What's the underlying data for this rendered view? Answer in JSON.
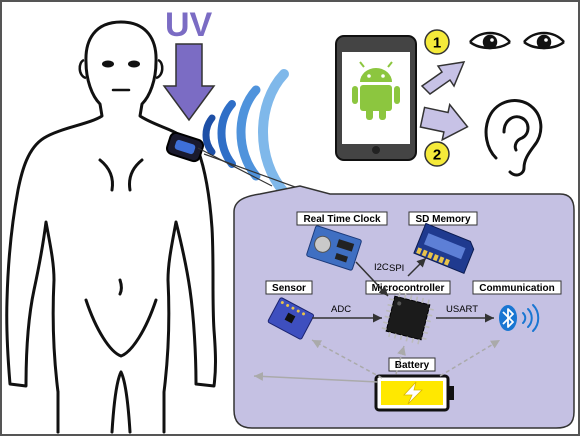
{
  "uv_label": "UV",
  "step_numbers": [
    "1",
    "2"
  ],
  "modules": {
    "rtc": "Real Time Clock",
    "sd": "SD Memory",
    "sensor": "Sensor",
    "mcu": "Microcontroller",
    "comm": "Communication",
    "battery": "Battery"
  },
  "buses": {
    "i2c": "I2C",
    "spi": "SPI",
    "adc": "ADC",
    "usart": "USART"
  },
  "colors": {
    "uv_purple": "#7b6cc4",
    "panel_fill": "#c5c1e3",
    "android_green": "#8cc63f",
    "wave_blue": "#3b7fd1",
    "number_yellow": "#f5ea3a",
    "battery_yellow": "#ffe800"
  },
  "icons": [
    "android-icon",
    "eye-icon",
    "ear-icon",
    "bluetooth-icon",
    "lightning-icon"
  ]
}
